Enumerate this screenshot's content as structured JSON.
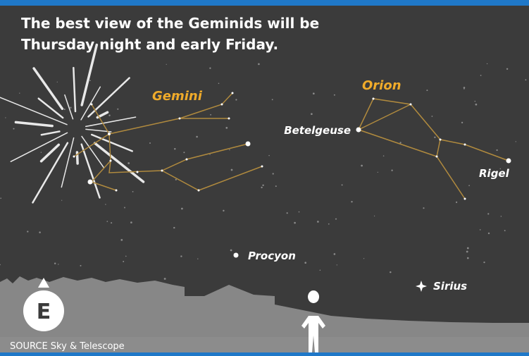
{
  "header": {
    "title": [
      "The best view of the Geminids will be",
      "Thursday night and early Friday."
    ]
  },
  "constellations": [
    "Gemini",
    "Orion"
  ],
  "stars": [
    "Betelgeuse",
    "Rigel",
    "Procyon",
    "Sirius"
  ],
  "compass": "E",
  "source": "SOURCE Sky & Telescope"
}
